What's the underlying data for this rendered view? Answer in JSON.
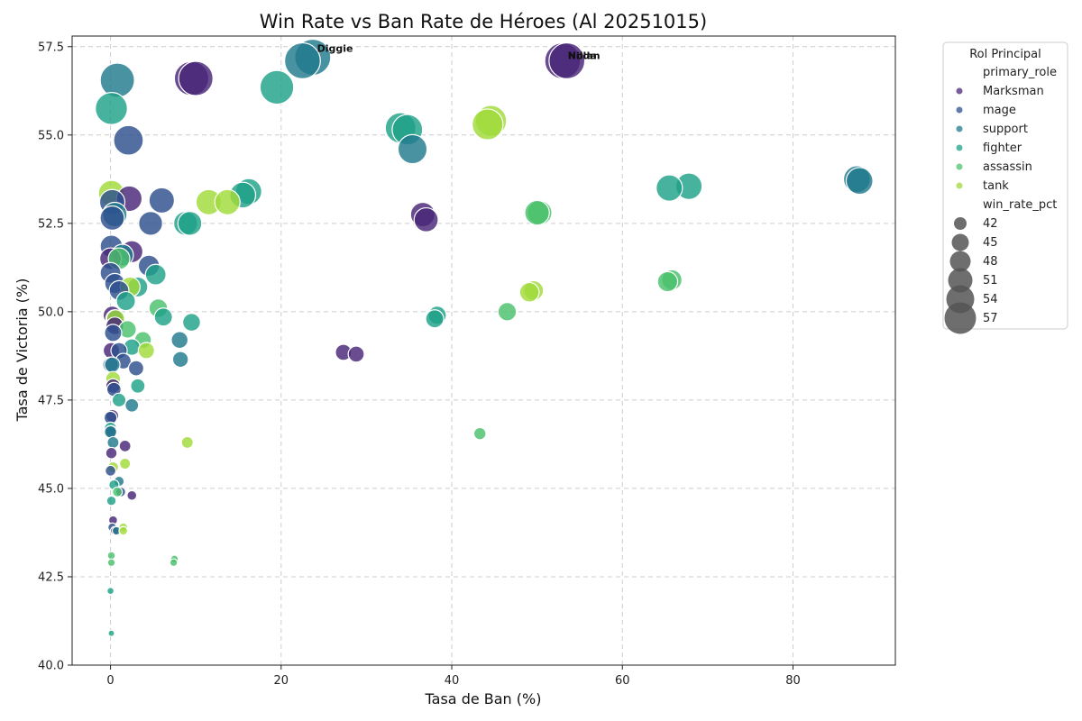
{
  "chart_data": {
    "type": "scatter",
    "title": "Win Rate vs Ban Rate de Héroes (Al 20251015)",
    "xlabel": "Tasa de Ban (%)",
    "ylabel": "Tasa de Victoria (%)",
    "xlim": [
      -4.5,
      92
    ],
    "ylim": [
      40,
      57.8
    ],
    "xticks": [
      0,
      20,
      40,
      60,
      80
    ],
    "yticks": [
      40.0,
      42.5,
      45.0,
      47.5,
      50.0,
      52.5,
      55.0,
      57.5
    ],
    "ytick_labels": [
      "40.0",
      "42.5",
      "45.0",
      "47.5",
      "50.0",
      "52.5",
      "55.0",
      "57.5"
    ],
    "grid": true,
    "legend": {
      "title": "Rol Principal",
      "placement": "outside-top-right",
      "hue_header": "primary_role",
      "size_header": "win_rate_pct",
      "roles": [
        {
          "name": "Marksman",
          "color": "#482677"
        },
        {
          "name": "mage",
          "color": "#2d4f8e"
        },
        {
          "name": "support",
          "color": "#217a8e"
        },
        {
          "name": "fighter",
          "color": "#1fa187"
        },
        {
          "name": "assassin",
          "color": "#4ac16d"
        },
        {
          "name": "tank",
          "color": "#a0da39"
        }
      ],
      "sizes": [
        "42",
        "45",
        "48",
        "51",
        "54",
        "57"
      ]
    },
    "annotations": [
      {
        "text": "Diggie",
        "x": 24.0,
        "y": 57.3
      },
      {
        "text": "Nolan",
        "x": 53.4,
        "y": 57.1
      },
      {
        "text": "Hilda",
        "x": 53.4,
        "y": 57.1
      }
    ],
    "series": [
      {
        "name": "Marksman",
        "points": [
          [
            9.5,
            56.6
          ],
          [
            10.0,
            56.6
          ],
          [
            53.0,
            57.1
          ],
          [
            53.5,
            57.1
          ],
          [
            36.6,
            52.75
          ],
          [
            37.0,
            52.6
          ],
          [
            27.3,
            48.85
          ],
          [
            28.8,
            48.8
          ],
          [
            2.2,
            53.2
          ],
          [
            2.5,
            51.7
          ],
          [
            0.0,
            51.5
          ],
          [
            0.2,
            49.9
          ],
          [
            0.5,
            49.6
          ],
          [
            0.1,
            48.9
          ],
          [
            0.3,
            47.9
          ],
          [
            0.2,
            47.05
          ],
          [
            0.1,
            46.0
          ],
          [
            1.7,
            46.2
          ],
          [
            2.5,
            44.8
          ],
          [
            0.3,
            44.1
          ],
          [
            0.5,
            43.8
          ]
        ]
      },
      {
        "name": "mage",
        "points": [
          [
            2.1,
            54.85
          ],
          [
            6.0,
            53.15
          ],
          [
            0.2,
            53.1
          ],
          [
            0.2,
            52.65
          ],
          [
            4.7,
            52.5
          ],
          [
            0.1,
            51.85
          ],
          [
            4.5,
            51.3
          ],
          [
            0.0,
            51.1
          ],
          [
            0.5,
            50.8
          ],
          [
            1.0,
            50.6
          ],
          [
            0.5,
            49.8
          ],
          [
            0.3,
            49.4
          ],
          [
            1.0,
            48.9
          ],
          [
            0.0,
            48.5
          ],
          [
            1.5,
            48.6
          ],
          [
            3.0,
            48.4
          ],
          [
            0.4,
            47.8
          ],
          [
            0.0,
            47.0
          ],
          [
            0.1,
            46.6
          ],
          [
            0.0,
            45.5
          ],
          [
            1.2,
            44.9
          ],
          [
            0.2,
            43.9
          ]
        ]
      },
      {
        "name": "support",
        "points": [
          [
            0.8,
            56.55
          ],
          [
            22.5,
            57.1
          ],
          [
            23.7,
            57.2
          ],
          [
            35.4,
            54.6
          ],
          [
            87.5,
            53.75
          ],
          [
            87.8,
            53.7
          ],
          [
            0.5,
            52.75
          ],
          [
            1.4,
            51.6
          ],
          [
            8.2,
            48.65
          ],
          [
            8.1,
            49.2
          ],
          [
            2.5,
            47.35
          ],
          [
            0.0,
            46.6
          ],
          [
            0.3,
            46.3
          ],
          [
            1.0,
            45.2
          ],
          [
            0.7,
            43.8
          ],
          [
            0.2,
            48.5
          ]
        ]
      },
      {
        "name": "fighter",
        "points": [
          [
            0.1,
            55.75
          ],
          [
            19.5,
            56.35
          ],
          [
            34.0,
            55.2
          ],
          [
            34.8,
            55.15
          ],
          [
            15.5,
            53.3
          ],
          [
            16.2,
            53.4
          ],
          [
            67.8,
            53.55
          ],
          [
            65.5,
            53.5
          ],
          [
            8.8,
            52.5
          ],
          [
            9.3,
            52.5
          ],
          [
            5.3,
            51.05
          ],
          [
            3.2,
            50.7
          ],
          [
            1.8,
            50.3
          ],
          [
            6.2,
            49.85
          ],
          [
            9.5,
            49.7
          ],
          [
            38.0,
            49.8
          ],
          [
            3.2,
            47.9
          ],
          [
            1.0,
            47.5
          ],
          [
            0.0,
            46.7
          ],
          [
            0.4,
            45.1
          ],
          [
            0.1,
            44.65
          ],
          [
            0.0,
            42.1
          ],
          [
            0.1,
            40.9
          ],
          [
            2.5,
            49.0
          ],
          [
            38.3,
            49.9
          ]
        ]
      },
      {
        "name": "assassin",
        "points": [
          [
            50.3,
            52.8
          ],
          [
            50.0,
            52.8
          ],
          [
            65.8,
            50.9
          ],
          [
            65.3,
            50.85
          ],
          [
            46.5,
            50.0
          ],
          [
            43.3,
            46.55
          ],
          [
            5.6,
            50.1
          ],
          [
            3.8,
            49.2
          ],
          [
            2.0,
            49.5
          ],
          [
            0.8,
            44.9
          ],
          [
            7.4,
            42.9
          ],
          [
            0.1,
            43.1
          ],
          [
            0.1,
            42.9
          ],
          [
            7.5,
            43.0
          ],
          [
            1.0,
            51.5
          ]
        ]
      },
      {
        "name": "tank",
        "points": [
          [
            44.2,
            55.3
          ],
          [
            44.6,
            55.4
          ],
          [
            0.1,
            53.35
          ],
          [
            11.5,
            53.1
          ],
          [
            13.7,
            53.1
          ],
          [
            49.1,
            50.55
          ],
          [
            49.6,
            50.6
          ],
          [
            2.3,
            50.7
          ],
          [
            4.2,
            48.9
          ],
          [
            9.0,
            46.3
          ],
          [
            1.7,
            45.7
          ],
          [
            0.3,
            45.6
          ],
          [
            0.3,
            48.1
          ],
          [
            0.6,
            49.8
          ],
          [
            1.5,
            43.8
          ],
          [
            1.5,
            43.9
          ]
        ]
      }
    ]
  }
}
